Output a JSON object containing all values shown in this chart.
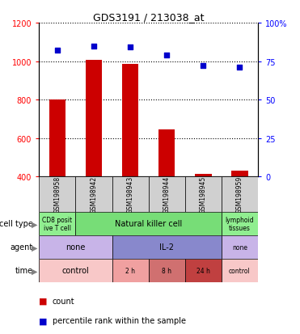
{
  "title": "GDS3191 / 213038_at",
  "samples": [
    "GSM198958",
    "GSM198942",
    "GSM198943",
    "GSM198944",
    "GSM198945",
    "GSM198959"
  ],
  "counts": [
    800,
    1005,
    985,
    645,
    415,
    430
  ],
  "percentile_ranks": [
    82,
    85,
    84,
    79,
    72,
    71
  ],
  "ylim_left": [
    400,
    1200
  ],
  "ylim_right": [
    0,
    100
  ],
  "yticks_left": [
    400,
    600,
    800,
    1000,
    1200
  ],
  "yticks_right": [
    0,
    25,
    50,
    75,
    100
  ],
  "bar_color": "#cc0000",
  "dot_color": "#0000cc",
  "bar_bottom": 400,
  "sample_bg_color": "#d0d0d0",
  "cell_types": [
    {
      "label": "CD8 posit\nive T cell",
      "span": [
        0,
        1
      ],
      "color": "#90ee90"
    },
    {
      "label": "Natural killer cell",
      "span": [
        1,
        5
      ],
      "color": "#77dd77"
    },
    {
      "label": "lymphoid\ntissues",
      "span": [
        5,
        6
      ],
      "color": "#90ee90"
    }
  ],
  "agents": [
    {
      "label": "none",
      "span": [
        0,
        2
      ],
      "color": "#c8b4e8"
    },
    {
      "label": "IL-2",
      "span": [
        2,
        5
      ],
      "color": "#8888cc"
    },
    {
      "label": "none",
      "span": [
        5,
        6
      ],
      "color": "#c8b4e8"
    }
  ],
  "times": [
    {
      "label": "control",
      "span": [
        0,
        2
      ],
      "color": "#f8c8c8"
    },
    {
      "label": "2 h",
      "span": [
        2,
        3
      ],
      "color": "#f0a0a0"
    },
    {
      "label": "8 h",
      "span": [
        3,
        4
      ],
      "color": "#d07070"
    },
    {
      "label": "24 h",
      "span": [
        4,
        5
      ],
      "color": "#c04040"
    },
    {
      "label": "control",
      "span": [
        5,
        6
      ],
      "color": "#f8c8c8"
    }
  ],
  "row_labels": [
    "cell type",
    "agent",
    "time"
  ],
  "legend_count_color": "#cc0000",
  "legend_dot_color": "#0000cc"
}
